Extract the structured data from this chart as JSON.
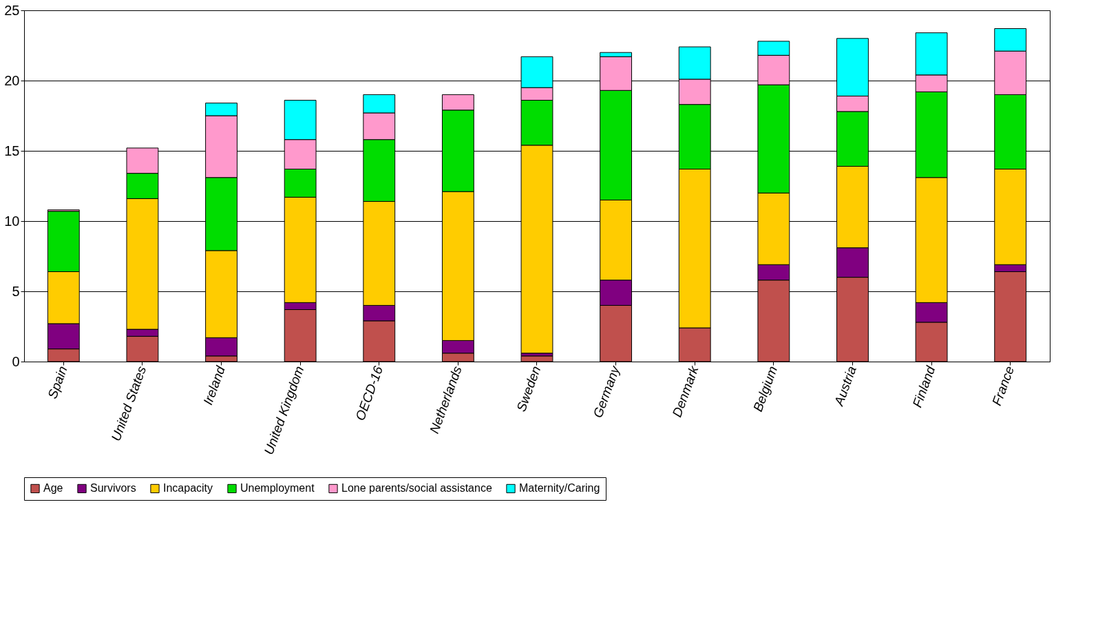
{
  "chart_data": {
    "type": "bar",
    "stacked": true,
    "categories": [
      "Spain",
      "United States",
      "Ireland",
      "United Kingdom",
      "OECD-16",
      "Netherlands",
      "Sweden",
      "Germany",
      "Denmark",
      "Belgium",
      "Austria",
      "Finland",
      "France"
    ],
    "series": [
      {
        "name": "Age",
        "color": "#c0504d",
        "values": [
          0.9,
          1.8,
          0.4,
          3.7,
          2.9,
          0.6,
          0.4,
          4.0,
          2.4,
          5.8,
          6.0,
          2.8,
          6.4
        ]
      },
      {
        "name": "Survivors",
        "color": "#800080",
        "values": [
          1.8,
          0.5,
          1.3,
          0.5,
          1.1,
          0.9,
          0.2,
          1.8,
          0,
          1.1,
          2.1,
          1.4,
          0.5
        ]
      },
      {
        "name": "Incapacity",
        "color": "#ffcc00",
        "values": [
          3.7,
          9.3,
          6.2,
          7.5,
          7.4,
          10.6,
          14.8,
          5.7,
          11.3,
          5.1,
          5.8,
          8.9,
          6.8
        ]
      },
      {
        "name": "Unemployment",
        "color": "#00dd00",
        "values": [
          4.3,
          1.8,
          5.2,
          2.0,
          4.4,
          5.8,
          3.2,
          7.8,
          4.6,
          7.7,
          3.9,
          6.1,
          5.3
        ]
      },
      {
        "name": "Lone parents/social assistance",
        "color": "#ff99cc",
        "values": [
          0.1,
          1.8,
          4.4,
          2.1,
          1.9,
          1.1,
          0.9,
          2.4,
          1.8,
          2.1,
          1.1,
          1.2,
          3.1
        ]
      },
      {
        "name": "Maternity/Caring",
        "color": "#00ffff",
        "values": [
          0,
          0,
          0.9,
          2.8,
          1.3,
          0,
          2.2,
          0.3,
          2.3,
          1.0,
          4.1,
          3.0,
          1.6
        ]
      }
    ],
    "ylim": [
      0,
      25
    ],
    "yticks": [
      0,
      5,
      10,
      15,
      20,
      25
    ],
    "grid": "y",
    "legend": "bottom"
  }
}
